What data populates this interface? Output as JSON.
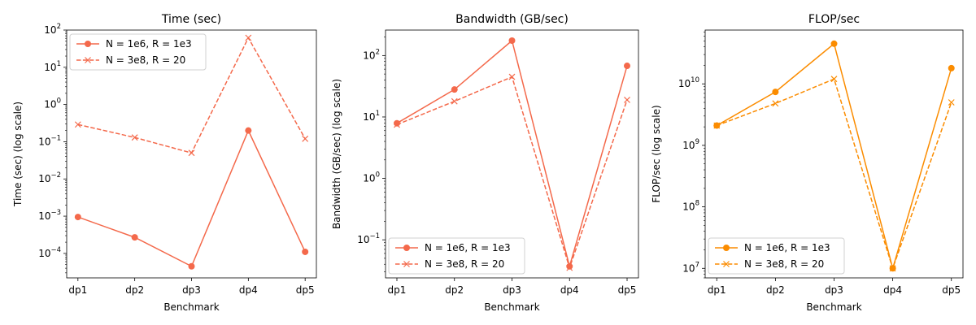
{
  "chart_data": [
    {
      "type": "line",
      "title": "Time (sec)",
      "xlabel": "Benchmark",
      "ylabel": "Time (sec) (log scale)",
      "yscale": "log",
      "ylim": [
        2.2e-05,
        100
      ],
      "categories": [
        "dp1",
        "dp2",
        "dp3",
        "dp4",
        "dp5"
      ],
      "yticks": [
        {
          "value": 0.0001,
          "base": "10",
          "exp": "−4"
        },
        {
          "value": 0.001,
          "base": "10",
          "exp": "−3"
        },
        {
          "value": 0.01,
          "base": "10",
          "exp": "−2"
        },
        {
          "value": 0.1,
          "base": "10",
          "exp": "−1"
        },
        {
          "value": 1,
          "base": "10",
          "exp": "0"
        },
        {
          "value": 10,
          "base": "10",
          "exp": "1"
        },
        {
          "value": 100,
          "base": "10",
          "exp": "2"
        }
      ],
      "legend_loc": "upper-left",
      "series": [
        {
          "name": "N = 1e6, R = 1e3",
          "color": "#f4694b",
          "dash": "solid",
          "marker": "circle",
          "values": [
            0.00095,
            0.00027,
            4.5e-05,
            0.2,
            0.00011
          ]
        },
        {
          "name": "N = 3e8, R = 20",
          "color": "#f4694b",
          "dash": "dashed",
          "marker": "x",
          "values": [
            0.29,
            0.13,
            0.05,
            62,
            0.12
          ]
        }
      ]
    },
    {
      "type": "line",
      "title": "Bandwidth (GB/sec)",
      "xlabel": "Benchmark",
      "ylabel": "Bandwidth (GB/sec) (log scale)",
      "yscale": "log",
      "ylim": [
        0.024,
        260
      ],
      "categories": [
        "dp1",
        "dp2",
        "dp3",
        "dp4",
        "dp5"
      ],
      "yticks": [
        {
          "value": 0.1,
          "base": "10",
          "exp": "−1"
        },
        {
          "value": 1,
          "base": "10",
          "exp": "0"
        },
        {
          "value": 10,
          "base": "10",
          "exp": "1"
        },
        {
          "value": 100,
          "base": "10",
          "exp": "2"
        }
      ],
      "legend_loc": "lower-left",
      "series": [
        {
          "name": "N = 1e6, R = 1e3",
          "color": "#f4694b",
          "dash": "solid",
          "marker": "circle",
          "values": [
            7.9,
            28,
            175,
            0.037,
            68
          ]
        },
        {
          "name": "N = 3e8, R = 20",
          "color": "#f4694b",
          "dash": "dashed",
          "marker": "x",
          "values": [
            7.5,
            18,
            45,
            0.035,
            19
          ]
        }
      ]
    },
    {
      "type": "line",
      "title": "FLOP/sec",
      "xlabel": "Benchmark",
      "ylabel": "FLOP/sec (log scale)",
      "yscale": "log",
      "ylim": [
        7000000,
        75000000000
      ],
      "categories": [
        "dp1",
        "dp2",
        "dp3",
        "dp4",
        "dp5"
      ],
      "yticks": [
        {
          "value": 10000000,
          "base": "10",
          "exp": "7"
        },
        {
          "value": 100000000,
          "base": "10",
          "exp": "8"
        },
        {
          "value": 1000000000,
          "base": "10",
          "exp": "9"
        },
        {
          "value": 10000000000,
          "base": "10",
          "exp": "10"
        }
      ],
      "legend_loc": "lower-left",
      "series": [
        {
          "name": "N = 1e6, R = 1e3",
          "color": "#fb8c00",
          "dash": "solid",
          "marker": "circle",
          "values": [
            2100000000,
            7400000000,
            45000000000,
            10000000,
            18000000000
          ]
        },
        {
          "name": "N = 3e8, R = 20",
          "color": "#fb8c00",
          "dash": "dashed",
          "marker": "x",
          "values": [
            2100000000,
            4800000000,
            12000000000,
            10000000,
            5000000000
          ]
        }
      ]
    }
  ]
}
